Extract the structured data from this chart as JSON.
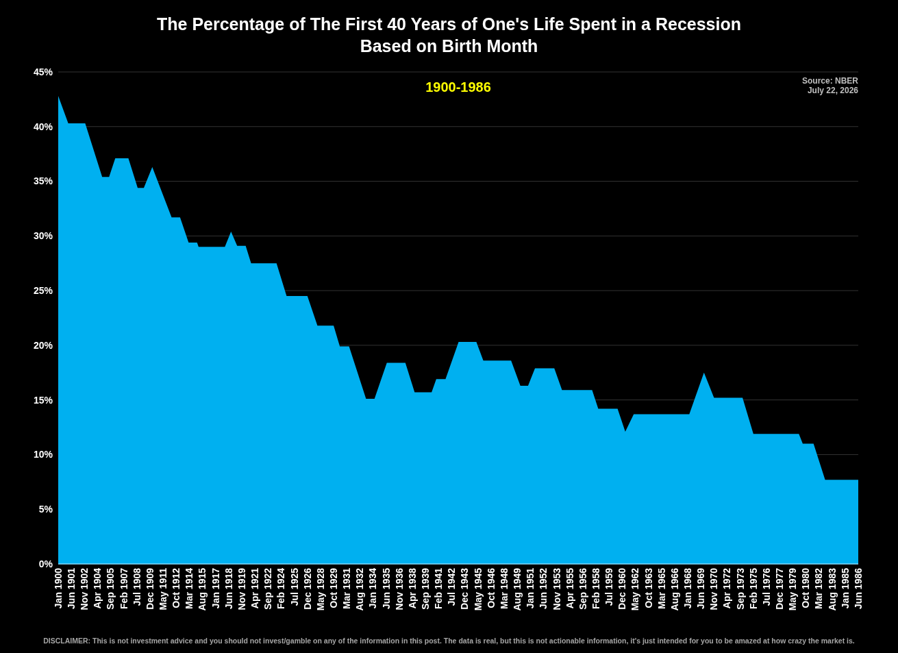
{
  "chart_data": {
    "type": "area",
    "title": "The Percentage of The First 40 Years of One's Life Spent in a Recession\nBased on Birth Month",
    "annotations": [
      "1900-1986",
      "Source: NBER",
      "July 22, 2026",
      "DISCLAIMER: This is not investment advice and you should not invest/gamble on any of the information in this post. The data is real, but this is not actionable information, it's just intended for you to be amazed at how crazy the market is."
    ],
    "x": [
      "1900-01",
      "1901-02",
      "1902-12",
      "1904-10",
      "1905-07",
      "1906-03",
      "1907-08",
      "1908-08",
      "1909-04",
      "1910-03",
      "1912-04",
      "1913-03",
      "1914-02",
      "1915-01",
      "1915-03",
      "1918-01",
      "1918-09",
      "1919-05",
      "1920-04",
      "1920-11",
      "1923-08",
      "1924-09",
      "1926-12",
      "1928-01",
      "1929-10",
      "1930-06",
      "1931-06",
      "1933-04",
      "1934-03",
      "1935-07",
      "1937-07",
      "1938-07",
      "1940-05",
      "1940-11",
      "1941-11",
      "1943-04",
      "1945-03",
      "1945-12",
      "1948-12",
      "1949-12",
      "1950-10",
      "1951-07",
      "1953-08",
      "1954-06",
      "1957-09",
      "1958-05",
      "1960-06",
      "1961-04",
      "1962-03",
      "1968-03",
      "1969-10",
      "1970-11",
      "1973-12",
      "1975-02",
      "1980-01",
      "1980-06",
      "1981-08",
      "1982-11",
      "1986-06"
    ],
    "series": [
      {
        "color": "#00b0f0",
        "values": [
          42.8,
          40.3,
          40.3,
          35.4,
          35.4,
          37.1,
          37.1,
          34.4,
          34.4,
          36.3,
          31.7,
          31.7,
          29.4,
          29.4,
          29.0,
          29.0,
          30.4,
          29.1,
          29.1,
          27.5,
          27.5,
          24.5,
          24.5,
          21.8,
          21.8,
          19.9,
          19.9,
          15.1,
          15.1,
          18.4,
          18.4,
          15.7,
          15.7,
          16.9,
          16.9,
          20.3,
          20.3,
          18.6,
          18.6,
          16.3,
          16.3,
          17.9,
          17.9,
          15.9,
          15.9,
          14.2,
          14.2,
          12.1,
          13.7,
          13.7,
          17.5,
          15.2,
          15.2,
          11.9,
          11.9,
          11.0,
          11.0,
          7.7,
          7.7
        ]
      }
    ],
    "xlim": [
      "1900-01",
      "1986-06"
    ],
    "xticks": [
      {
        "value": "1900-01",
        "label": "Jan 1900"
      },
      {
        "value": "1901-06",
        "label": "Jun 1901"
      },
      {
        "value": "1902-11",
        "label": "Nov 1902"
      },
      {
        "value": "1904-04",
        "label": "Apr 1904"
      },
      {
        "value": "1905-09",
        "label": "Sep 1905"
      },
      {
        "value": "1907-02",
        "label": "Feb 1907"
      },
      {
        "value": "1908-07",
        "label": "Jul 1908"
      },
      {
        "value": "1909-12",
        "label": "Dec 1909"
      },
      {
        "value": "1911-05",
        "label": "May 1911"
      },
      {
        "value": "1912-10",
        "label": "Oct 1912"
      },
      {
        "value": "1914-03",
        "label": "Mar 1914"
      },
      {
        "value": "1915-08",
        "label": "Aug 1915"
      },
      {
        "value": "1917-01",
        "label": "Jan 1917"
      },
      {
        "value": "1918-06",
        "label": "Jun 1918"
      },
      {
        "value": "1919-11",
        "label": "Nov 1919"
      },
      {
        "value": "1921-04",
        "label": "Apr 1921"
      },
      {
        "value": "1922-09",
        "label": "Sep 1922"
      },
      {
        "value": "1924-02",
        "label": "Feb 1924"
      },
      {
        "value": "1925-07",
        "label": "Jul 1925"
      },
      {
        "value": "1926-12",
        "label": "Dec 1926"
      },
      {
        "value": "1928-05",
        "label": "May 1928"
      },
      {
        "value": "1929-10",
        "label": "Oct 1929"
      },
      {
        "value": "1931-03",
        "label": "Mar 1931"
      },
      {
        "value": "1932-08",
        "label": "Aug 1932"
      },
      {
        "value": "1934-01",
        "label": "Jan 1934"
      },
      {
        "value": "1935-06",
        "label": "Jun 1935"
      },
      {
        "value": "1936-11",
        "label": "Nov 1936"
      },
      {
        "value": "1938-04",
        "label": "Apr 1938"
      },
      {
        "value": "1939-09",
        "label": "Sep 1939"
      },
      {
        "value": "1941-02",
        "label": "Feb 1941"
      },
      {
        "value": "1942-07",
        "label": "Jul 1942"
      },
      {
        "value": "1943-12",
        "label": "Dec 1943"
      },
      {
        "value": "1945-05",
        "label": "May 1945"
      },
      {
        "value": "1946-10",
        "label": "Oct 1946"
      },
      {
        "value": "1948-03",
        "label": "Mar 1948"
      },
      {
        "value": "1949-08",
        "label": "Aug 1949"
      },
      {
        "value": "1951-01",
        "label": "Jan 1951"
      },
      {
        "value": "1952-06",
        "label": "Jun 1952"
      },
      {
        "value": "1953-11",
        "label": "Nov 1953"
      },
      {
        "value": "1955-04",
        "label": "Apr 1955"
      },
      {
        "value": "1956-09",
        "label": "Sep 1956"
      },
      {
        "value": "1958-02",
        "label": "Feb 1958"
      },
      {
        "value": "1959-07",
        "label": "Jul 1959"
      },
      {
        "value": "1960-12",
        "label": "Dec 1960"
      },
      {
        "value": "1962-05",
        "label": "May 1962"
      },
      {
        "value": "1963-10",
        "label": "Oct 1963"
      },
      {
        "value": "1965-03",
        "label": "Mar 1965"
      },
      {
        "value": "1966-08",
        "label": "Aug 1966"
      },
      {
        "value": "1968-01",
        "label": "Jan 1968"
      },
      {
        "value": "1969-06",
        "label": "Jun 1969"
      },
      {
        "value": "1970-11",
        "label": "Nov 1970"
      },
      {
        "value": "1972-04",
        "label": "Apr 1972"
      },
      {
        "value": "1973-09",
        "label": "Sep 1973"
      },
      {
        "value": "1975-02",
        "label": "Feb 1975"
      },
      {
        "value": "1976-07",
        "label": "Jul 1976"
      },
      {
        "value": "1977-12",
        "label": "Dec 1977"
      },
      {
        "value": "1979-05",
        "label": "May 1979"
      },
      {
        "value": "1980-10",
        "label": "Oct 1980"
      },
      {
        "value": "1982-03",
        "label": "Mar 1982"
      },
      {
        "value": "1983-08",
        "label": "Aug 1983"
      },
      {
        "value": "1985-01",
        "label": "Jan 1985"
      },
      {
        "value": "1986-06",
        "label": "Jun 1986"
      }
    ],
    "ylim": [
      0,
      45
    ],
    "yticks": [
      {
        "value": 0,
        "label": "0%"
      },
      {
        "value": 5,
        "label": "5%"
      },
      {
        "value": 10,
        "label": "10%"
      },
      {
        "value": 15,
        "label": "15%"
      },
      {
        "value": 20,
        "label": "20%"
      },
      {
        "value": 25,
        "label": "25%"
      },
      {
        "value": 30,
        "label": "30%"
      },
      {
        "value": 35,
        "label": "35%"
      },
      {
        "value": 40,
        "label": "40%"
      },
      {
        "value": 45,
        "label": "45%"
      }
    ],
    "grid": "y"
  }
}
